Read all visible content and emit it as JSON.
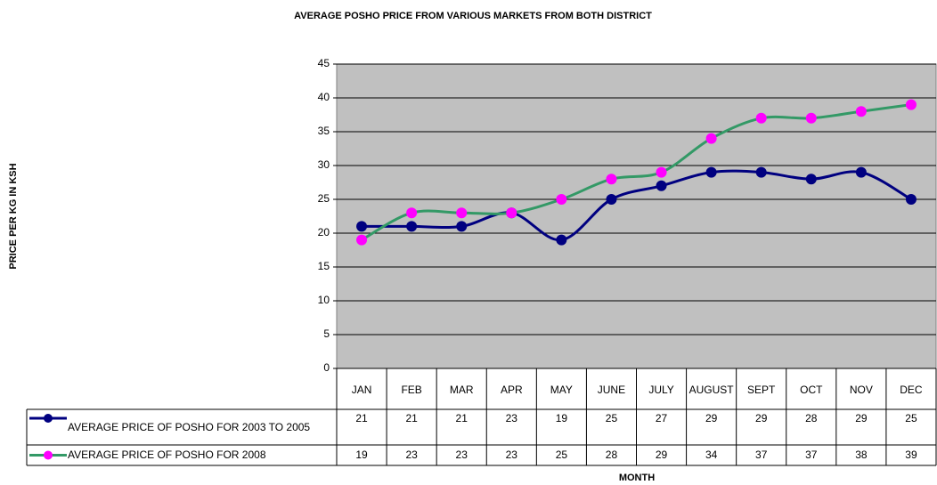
{
  "chart_data": {
    "type": "line",
    "title": "AVERAGE POSHO PRICE FROM VARIOUS MARKETS FROM BOTH DISTRICT",
    "x_label": "MONTH",
    "y_label": "PRICE PER KG IN KSH",
    "categories": [
      "JAN",
      "FEB",
      "MAR",
      "APR",
      "MAY",
      "JUNE",
      "JULY",
      "AUGUST",
      "SEPT",
      "OCT",
      "NOV",
      "DEC"
    ],
    "series": [
      {
        "name": "AVERAGE PRICE OF POSHO FOR 2003 TO 2005",
        "color": "#000080",
        "marker_color": "#000080",
        "values": [
          21,
          21,
          21,
          23,
          19,
          25,
          27,
          29,
          29,
          28,
          29,
          25
        ]
      },
      {
        "name": "AVERAGE PRICE OF POSHO FOR 2008",
        "color": "#339966",
        "marker_color": "#ff00ff",
        "values": [
          19,
          23,
          23,
          23,
          25,
          28,
          29,
          34,
          37,
          37,
          38,
          39
        ]
      }
    ],
    "ylim": [
      0,
      45
    ],
    "yticks": [
      0,
      5,
      10,
      15,
      20,
      25,
      30,
      35,
      40,
      45
    ],
    "grid": true,
    "plot_background": "#c0c0c0",
    "smooth": true
  }
}
